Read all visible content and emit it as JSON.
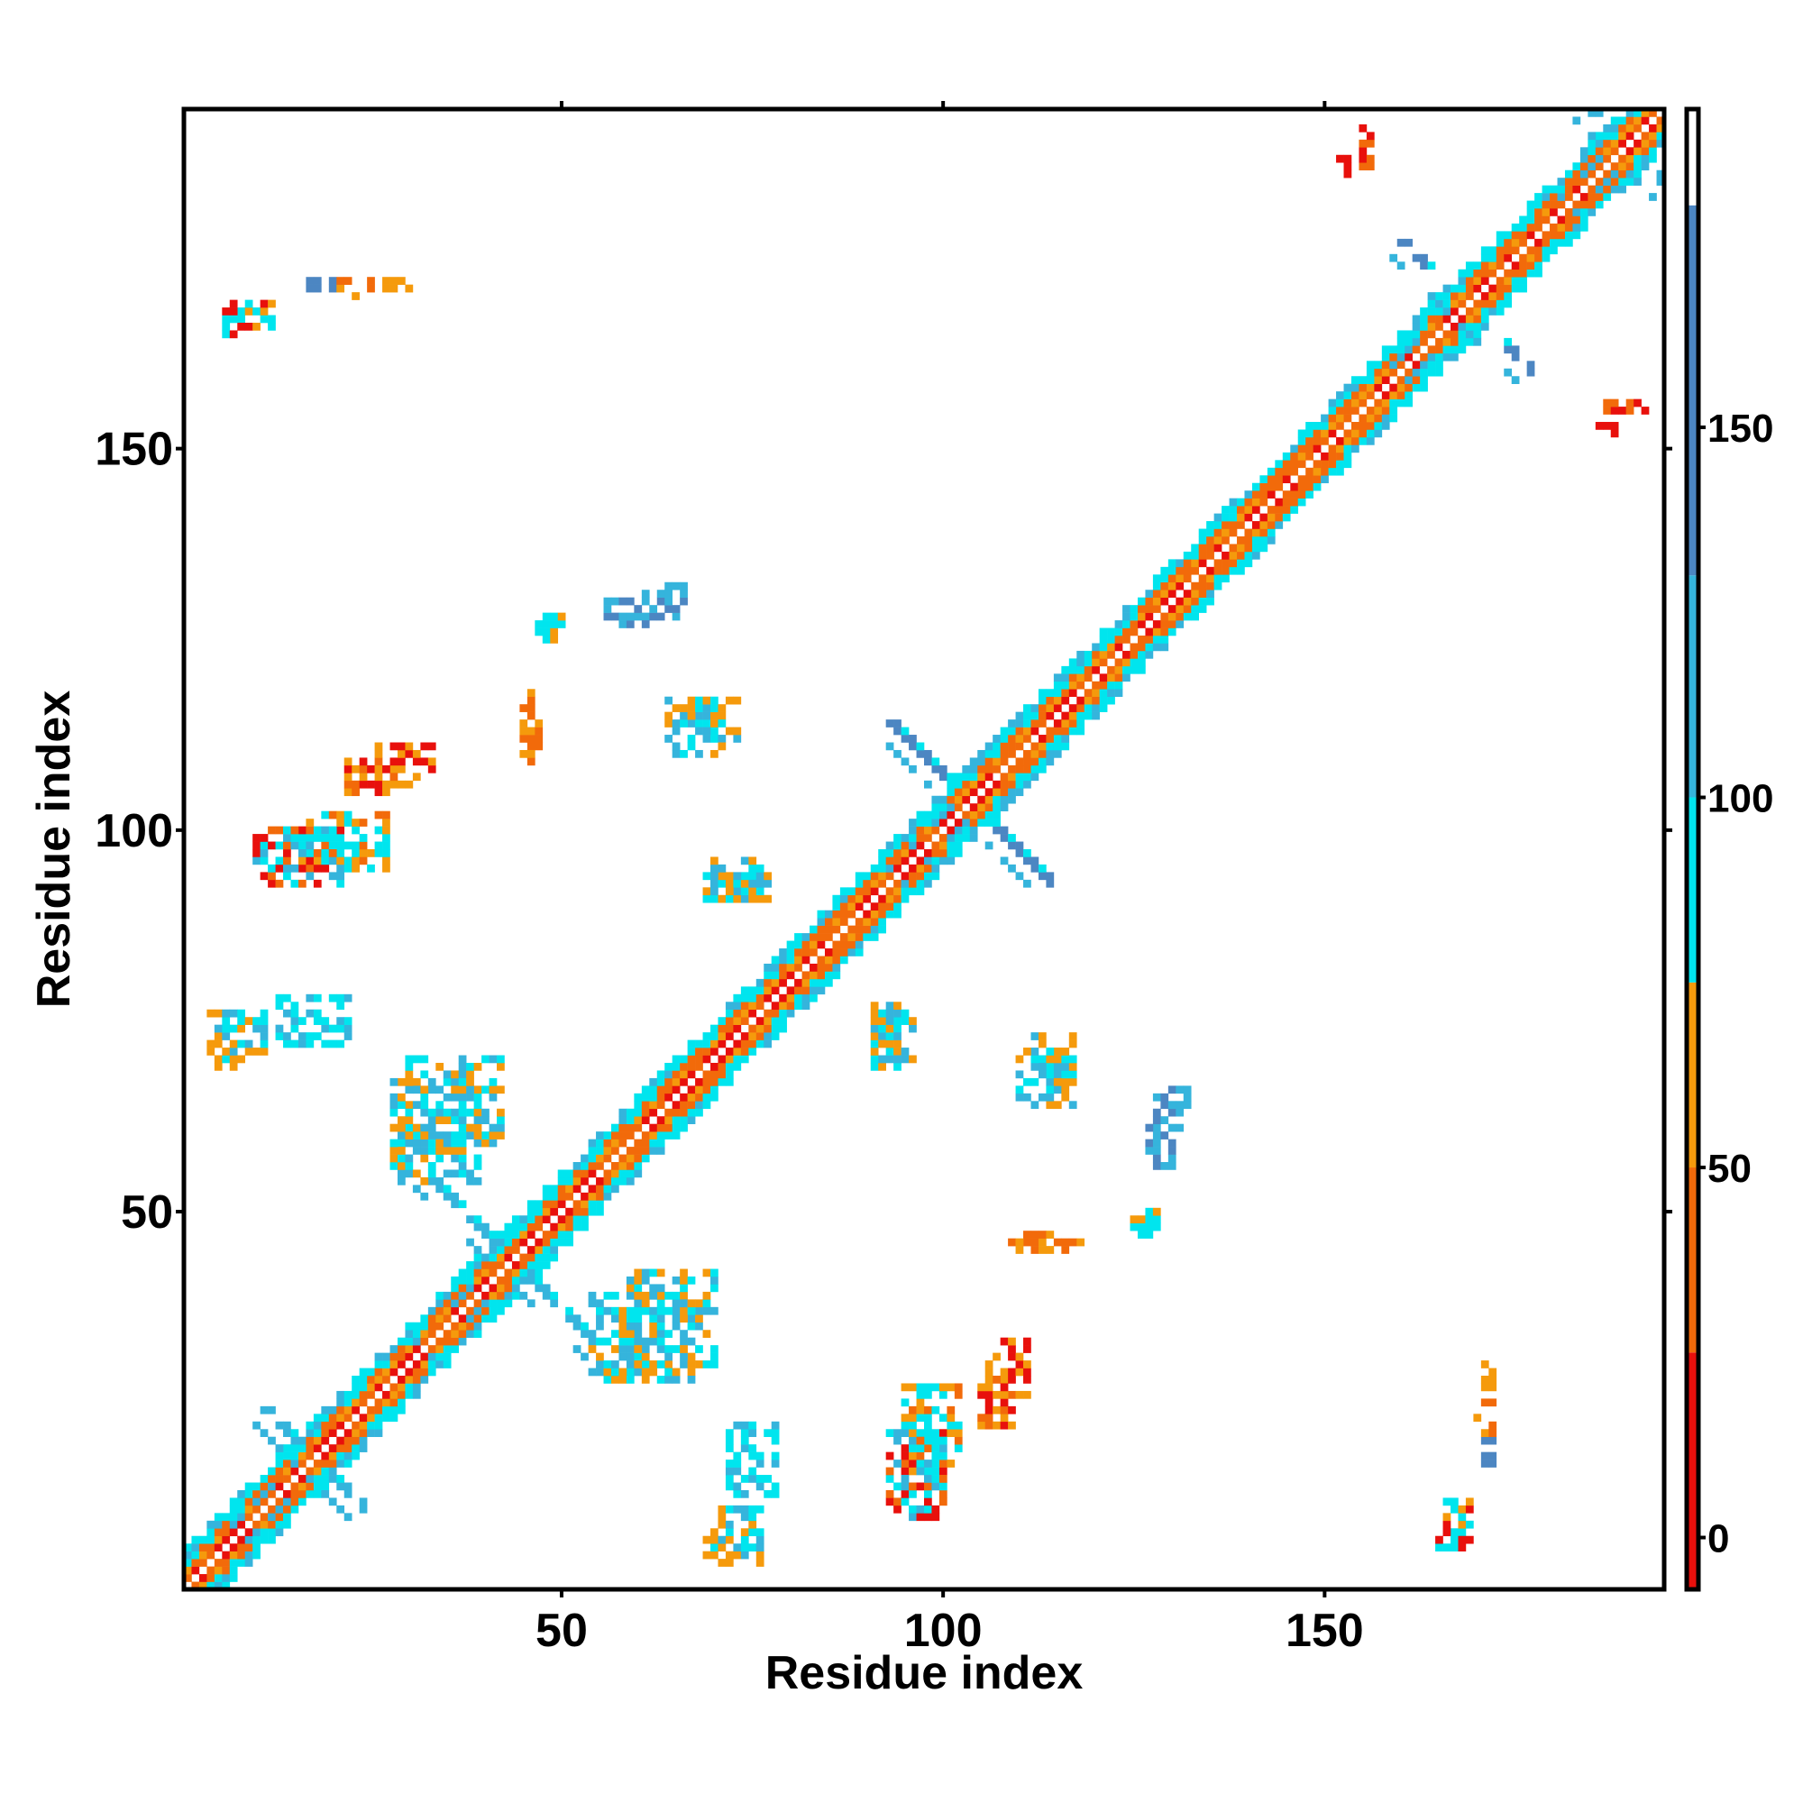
{
  "chart_data": {
    "type": "heatmap",
    "xlabel": "Residue index",
    "ylabel": "Residue index",
    "xlim": [
      1,
      194
    ],
    "ylim": [
      1,
      194
    ],
    "x_ticks": [
      50,
      100,
      150
    ],
    "y_ticks": [
      50,
      100,
      150
    ],
    "grid": false,
    "colorbar": {
      "ticks": [
        0,
        50,
        100,
        150
      ],
      "range": [
        -7,
        193
      ],
      "bands": [
        {
          "from": -7,
          "to": 25,
          "color": "#e8100c"
        },
        {
          "from": 25,
          "to": 50,
          "color": "#f26a0a"
        },
        {
          "from": 50,
          "to": 75,
          "color": "#f59a0c"
        },
        {
          "from": 75,
          "to": 100,
          "color": "#00e5ee"
        },
        {
          "from": 100,
          "to": 130,
          "color": "#35b4dc"
        },
        {
          "from": 130,
          "to": 180,
          "color": "#4c86c2"
        },
        {
          "from": 180,
          "to": 193,
          "color": "#ffffff"
        }
      ]
    },
    "diagonal_band": {
      "start": 1,
      "end": 194,
      "half_width": 5
    },
    "symmetric": true,
    "offdiagonal_clusters": [
      {
        "x": 13,
        "y": 72,
        "w": 10,
        "h": 7,
        "values": [
          90,
          95,
          120
        ]
      },
      {
        "x": 16,
        "y": 95,
        "w": 12,
        "h": 8,
        "values": [
          30,
          55,
          90
        ]
      },
      {
        "x": 26,
        "y": 106,
        "w": 8,
        "h": 6,
        "values": [
          20,
          50,
          60
        ]
      },
      {
        "x": 29,
        "y": 59,
        "w": 14,
        "h": 12,
        "values": [
          55,
          90,
          110
        ]
      },
      {
        "x": 7,
        "y": 166,
        "w": 6,
        "h": 4,
        "values": [
          10,
          60,
          90
        ]
      },
      {
        "x": 17,
        "y": 171,
        "w": 5,
        "h": 2,
        "values": [
          140
        ]
      },
      {
        "x": 26,
        "y": 171,
        "w": 5,
        "h": 2,
        "values": [
          60
        ]
      },
      {
        "x": 47,
        "y": 125,
        "w": 4,
        "h": 4,
        "values": [
          60,
          90
        ]
      },
      {
        "x": 46,
        "y": 110,
        "w": 2,
        "h": 6,
        "values": [
          40,
          55
        ]
      },
      {
        "x": 60,
        "y": 128,
        "w": 7,
        "h": 5,
        "values": [
          110,
          140
        ]
      },
      {
        "x": 67,
        "y": 112,
        "w": 7,
        "h": 6,
        "values": [
          55,
          90,
          110
        ]
      },
      {
        "x": 69,
        "y": 91,
        "w": 9,
        "h": 4,
        "values": [
          55,
          90,
          110
        ]
      },
      {
        "x": 92,
        "y": 70,
        "w": 5,
        "h": 7,
        "values": [
          55,
          90,
          110
        ]
      },
      {
        "x": 110,
        "y": 64,
        "w": 8,
        "h": 8,
        "values": [
          55,
          90,
          110
        ]
      },
      {
        "x": 127,
        "y": 56,
        "w": 4,
        "h": 7,
        "values": [
          110,
          140
        ]
      },
      {
        "x": 125,
        "y": 47,
        "w": 4,
        "h": 4,
        "values": [
          60,
          90
        ]
      },
      {
        "x": 109,
        "y": 45,
        "w": 10,
        "h": 2,
        "values": [
          40,
          55
        ]
      },
      {
        "x": 54,
        "y": 28,
        "w": 14,
        "h": 12,
        "values": [
          55,
          90,
          110
        ]
      },
      {
        "x": 105,
        "y": 22,
        "w": 5,
        "h": 7,
        "values": [
          10,
          30,
          55
        ]
      },
      {
        "x": 93,
        "y": 10,
        "w": 8,
        "h": 12,
        "values": [
          10,
          30,
          90,
          110
        ]
      },
      {
        "x": 69,
        "y": 4,
        "w": 8,
        "h": 8,
        "values": [
          55,
          90,
          110
        ]
      },
      {
        "x": 170,
        "y": 21,
        "w": 3,
        "h": 5,
        "values": [
          40,
          60
        ]
      },
      {
        "x": 165,
        "y": 5,
        "w": 4,
        "h": 4,
        "values": [
          10,
          90
        ]
      },
      {
        "x": 155,
        "y": 187,
        "w": 2,
        "h": 6,
        "values": [
          10,
          40
        ]
      },
      {
        "x": 184,
        "y": 152,
        "w": 6,
        "h": 2,
        "values": [
          10
        ]
      }
    ],
    "star_motifs": [
      {
        "center": 17,
        "arm": 9,
        "value": 120
      },
      {
        "center": 43,
        "arm": 10,
        "value": 120
      },
      {
        "center": 103,
        "arm": 10,
        "value": 140
      },
      {
        "center": 168,
        "arm": 8,
        "value": 140
      },
      {
        "center": 189,
        "arm": 6,
        "value": 120
      }
    ]
  }
}
